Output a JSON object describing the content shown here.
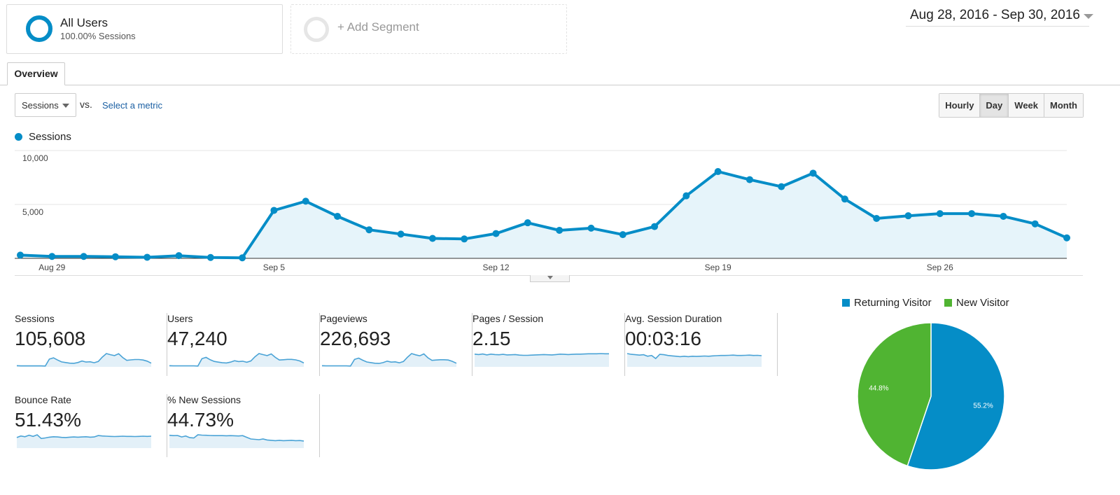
{
  "segments": {
    "all_users": {
      "title": "All Users",
      "subtitle": "100.00% Sessions"
    },
    "add_segment": {
      "label": "+ Add Segment"
    }
  },
  "date_range": {
    "label": "Aug 28, 2016 - Sep 30, 2016"
  },
  "tabs": [
    {
      "label": "Overview",
      "active": true
    }
  ],
  "metric_selector": {
    "selected": "Sessions",
    "vs_label": "vs.",
    "select_link": "Select a metric"
  },
  "granularity": [
    {
      "label": "Hourly",
      "active": false
    },
    {
      "label": "Day",
      "active": true
    },
    {
      "label": "Week",
      "active": false
    },
    {
      "label": "Month",
      "active": false
    }
  ],
  "colors": {
    "accent": "#058dc7",
    "accent_fill": "#e6f4fa",
    "new_visitor": "#50b432"
  },
  "chart_data": [
    {
      "type": "area",
      "title": "",
      "xlabel": "",
      "ylabel": "",
      "legend": "top-left",
      "grid": true,
      "ylim": [
        0,
        10000
      ],
      "yticks": [
        {
          "value": 5000,
          "label": "5,000"
        },
        {
          "value": 10000,
          "label": "10,000"
        }
      ],
      "xticks": [
        {
          "index": 1,
          "label": "Aug 29"
        },
        {
          "index": 8,
          "label": "Sep 5"
        },
        {
          "index": 15,
          "label": "Sep 12"
        },
        {
          "index": 22,
          "label": "Sep 19"
        },
        {
          "index": 29,
          "label": "Sep 26"
        }
      ],
      "series": [
        {
          "name": "Sessions",
          "x": [
            "Aug 28",
            "Aug 29",
            "Aug 30",
            "Aug 31",
            "Sep 1",
            "Sep 2",
            "Sep 3",
            "Sep 4",
            "Sep 5",
            "Sep 6",
            "Sep 7",
            "Sep 8",
            "Sep 9",
            "Sep 10",
            "Sep 11",
            "Sep 12",
            "Sep 13",
            "Sep 14",
            "Sep 15",
            "Sep 16",
            "Sep 17",
            "Sep 18",
            "Sep 19",
            "Sep 20",
            "Sep 21",
            "Sep 22",
            "Sep 23",
            "Sep 24",
            "Sep 25",
            "Sep 26",
            "Sep 27",
            "Sep 28",
            "Sep 29",
            "Sep 30"
          ],
          "values": [
            300,
            180,
            180,
            150,
            100,
            250,
            80,
            50,
            4450,
            5300,
            3900,
            2650,
            2250,
            1850,
            1800,
            2300,
            3300,
            2600,
            2800,
            2200,
            2950,
            5800,
            8050,
            7300,
            6650,
            7900,
            5500,
            3700,
            3950,
            4150,
            4150,
            3900,
            3200,
            1900
          ]
        }
      ]
    },
    {
      "type": "pie",
      "title": "",
      "legend": "top",
      "labels": [
        "Returning Visitor",
        "New Visitor"
      ],
      "values": [
        55.2,
        44.8
      ],
      "value_labels": [
        "55.2%",
        "44.8%"
      ],
      "colors": [
        "#058dc7",
        "#50b432"
      ]
    }
  ],
  "stats": [
    {
      "label": "Sessions",
      "value": "105,608",
      "spark": [
        3,
        2,
        2,
        2,
        2,
        2,
        2,
        1,
        45,
        53,
        39,
        27,
        23,
        19,
        18,
        23,
        33,
        26,
        28,
        22,
        30,
        58,
        80,
        73,
        67,
        79,
        55,
        37,
        40,
        42,
        42,
        39,
        32,
        19
      ]
    },
    {
      "label": "Users",
      "value": "47,240",
      "spark": [
        3,
        2,
        2,
        2,
        2,
        2,
        2,
        1,
        44,
        52,
        38,
        28,
        24,
        20,
        19,
        24,
        32,
        27,
        29,
        23,
        31,
        55,
        74,
        68,
        62,
        72,
        52,
        36,
        38,
        40,
        40,
        37,
        31,
        19
      ]
    },
    {
      "label": "Pageviews",
      "value": "226,693",
      "spark": [
        3,
        2,
        2,
        2,
        2,
        2,
        2,
        1,
        42,
        50,
        37,
        26,
        22,
        18,
        17,
        22,
        31,
        25,
        27,
        21,
        29,
        56,
        78,
        70,
        64,
        76,
        52,
        36,
        38,
        40,
        40,
        38,
        30,
        18
      ]
    },
    {
      "label": "Pages / Session",
      "value": "2.15",
      "spark": [
        62,
        60,
        63,
        58,
        62,
        60,
        59,
        61,
        58,
        59,
        60,
        57,
        56,
        56,
        57,
        58,
        59,
        60,
        59,
        58,
        60,
        62,
        61,
        60,
        61,
        62,
        62,
        63,
        64,
        64,
        64,
        65,
        64,
        64
      ]
    },
    {
      "label": "Avg. Session Duration",
      "value": "00:03:16",
      "spark": [
        66,
        62,
        60,
        58,
        60,
        52,
        56,
        40,
        62,
        60,
        56,
        54,
        52,
        50,
        52,
        50,
        52,
        51,
        52,
        53,
        52,
        54,
        55,
        56,
        56,
        57,
        58,
        56,
        56,
        57,
        58,
        56,
        57,
        55
      ]
    },
    {
      "label": "Bounce Rate",
      "value": "51.43%",
      "spark": [
        50,
        58,
        54,
        62,
        56,
        64,
        45,
        48,
        52,
        54,
        53,
        51,
        50,
        52,
        53,
        52,
        53,
        54,
        52,
        53,
        60,
        58,
        57,
        56,
        55,
        56,
        57,
        56,
        56,
        55,
        56,
        57,
        56,
        57
      ]
    },
    {
      "label": "% New Sessions",
      "value": "44.73%",
      "spark": [
        72,
        70,
        71,
        62,
        68,
        58,
        56,
        75,
        73,
        72,
        71,
        70,
        70,
        70,
        69,
        70,
        69,
        68,
        70,
        60,
        50,
        48,
        46,
        50,
        44,
        42,
        40,
        42,
        40,
        41,
        42,
        40,
        41,
        38
      ]
    }
  ]
}
